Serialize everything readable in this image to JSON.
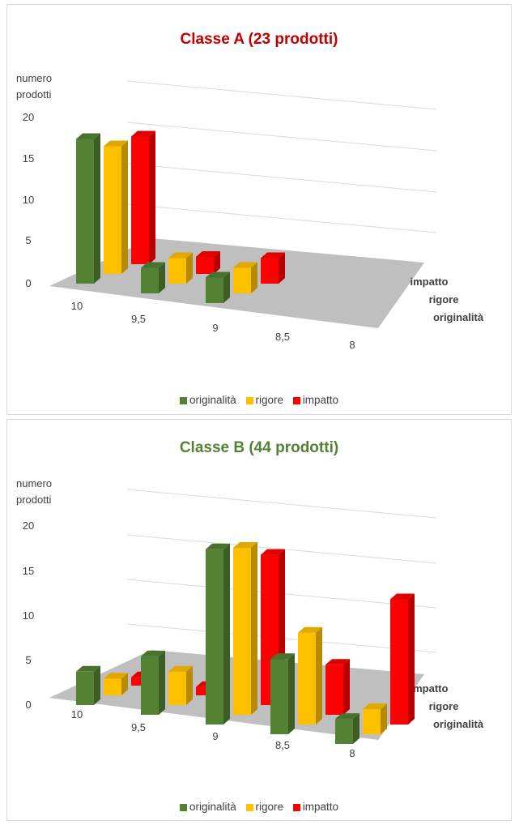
{
  "chart_data": [
    {
      "type": "bar",
      "title": "Classe A (23 prodotti)",
      "title_color": "#c00000",
      "ylabel": "numero prodotti",
      "ylim": [
        0,
        20
      ],
      "yticks": [
        "0",
        "5",
        "10",
        "15",
        "20"
      ],
      "categories": [
        "10",
        "9,5",
        "9",
        "8,5",
        "8"
      ],
      "series": [
        {
          "name": "originalità",
          "color": "#548235",
          "values": [
            17,
            3,
            3,
            0,
            0
          ]
        },
        {
          "name": "rigore",
          "color": "#ffc000",
          "values": [
            15,
            3,
            3,
            0,
            0
          ]
        },
        {
          "name": "impatto",
          "color": "#ff0000",
          "values": [
            15,
            2,
            3,
            0,
            0
          ]
        }
      ],
      "depth_labels": [
        "originalità",
        "rigore",
        "impatto"
      ],
      "grid": true,
      "legend_position": "bottom"
    },
    {
      "type": "bar",
      "title": "Classe B (44 prodotti)",
      "title_color": "#548235",
      "ylabel": "numero prodotti",
      "ylim": [
        0,
        20
      ],
      "yticks": [
        "0",
        "5",
        "10",
        "15",
        "20"
      ],
      "categories": [
        "10",
        "9,5",
        "9",
        "8,5",
        "8"
      ],
      "series": [
        {
          "name": "originalità",
          "color": "#548235",
          "values": [
            4,
            7,
            21,
            9,
            3
          ]
        },
        {
          "name": "rigore",
          "color": "#ffc000",
          "values": [
            2,
            4,
            20,
            11,
            3
          ]
        },
        {
          "name": "impatto",
          "color": "#ff0000",
          "values": [
            1,
            1,
            18,
            6,
            15
          ]
        }
      ],
      "depth_labels": [
        "originalità",
        "rigore",
        "impatto"
      ],
      "grid": true,
      "legend_position": "bottom"
    }
  ]
}
